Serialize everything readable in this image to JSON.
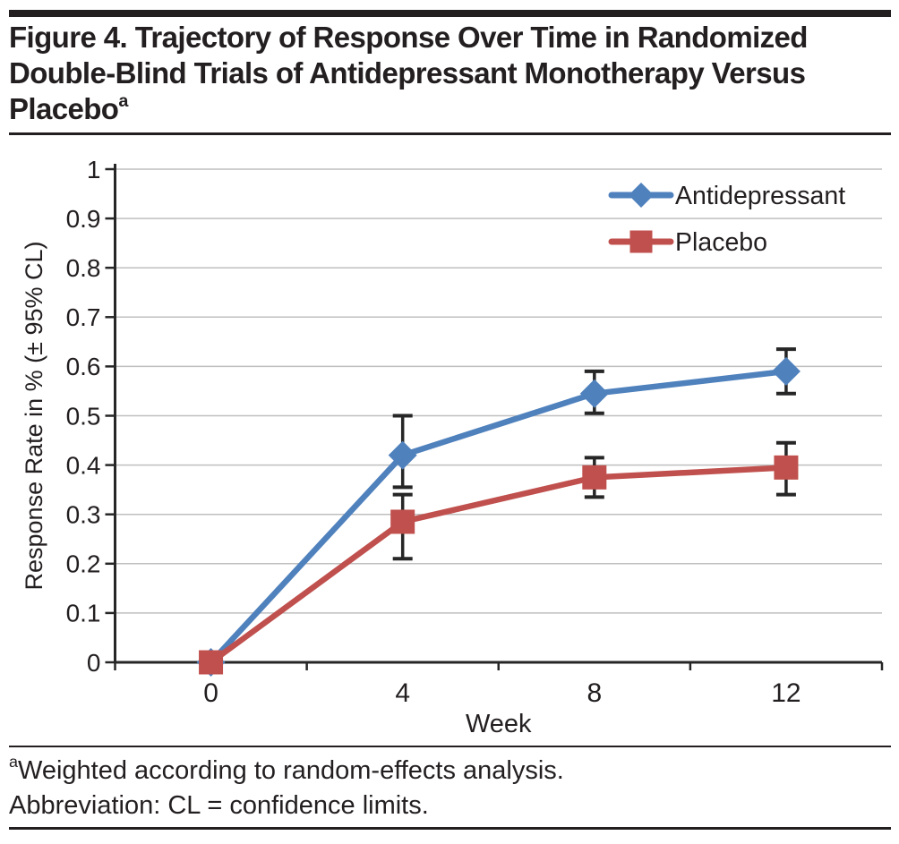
{
  "title": {
    "lines": [
      "Figure 4. Trajectory of Response Over Time in Randomized",
      "Double-Blind Trials of Antidepressant Monotherapy Versus",
      "Placebo"
    ],
    "superscript": "a"
  },
  "footnotes": [
    {
      "marker": "a",
      "text": "Weighted according to random-effects analysis."
    },
    {
      "marker": "",
      "text": "Abbreviation: CL = confidence limits."
    }
  ],
  "colors": {
    "antidepressant_blue": "#4F81BD",
    "placebo_red": "#C0504D",
    "axis": "#262626",
    "error_bar": "#262626",
    "grid": "#BFBFBF",
    "text": "#231F20",
    "rule": "#231F20"
  },
  "chart_data": {
    "type": "line",
    "title": "",
    "xlabel": "Week",
    "ylabel": "Response Rate in % (± 95% CL)",
    "categories": [
      "0",
      "4",
      "8",
      "12"
    ],
    "x_values": [
      0,
      4,
      8,
      12
    ],
    "ylim": [
      0,
      1
    ],
    "y_tick_step": 0.1,
    "y_ticks": [
      "0",
      "0.1",
      "0.2",
      "0.3",
      "0.4",
      "0.5",
      "0.6",
      "0.7",
      "0.8",
      "0.9",
      "1"
    ],
    "grid": true,
    "legend_position": "top-right",
    "series": [
      {
        "name": "Antidepressant",
        "marker": "diamond",
        "color": "#4F81BD",
        "values": [
          0,
          0.42,
          0.545,
          0.59
        ],
        "ci_low": [
          null,
          0.355,
          0.505,
          0.545
        ],
        "ci_high": [
          null,
          0.5,
          0.59,
          0.635
        ]
      },
      {
        "name": "Placebo",
        "marker": "square",
        "color": "#C0504D",
        "values": [
          0,
          0.285,
          0.375,
          0.395
        ],
        "ci_low": [
          null,
          0.21,
          0.335,
          0.34
        ],
        "ci_high": [
          null,
          0.34,
          0.415,
          0.445
        ]
      }
    ]
  }
}
